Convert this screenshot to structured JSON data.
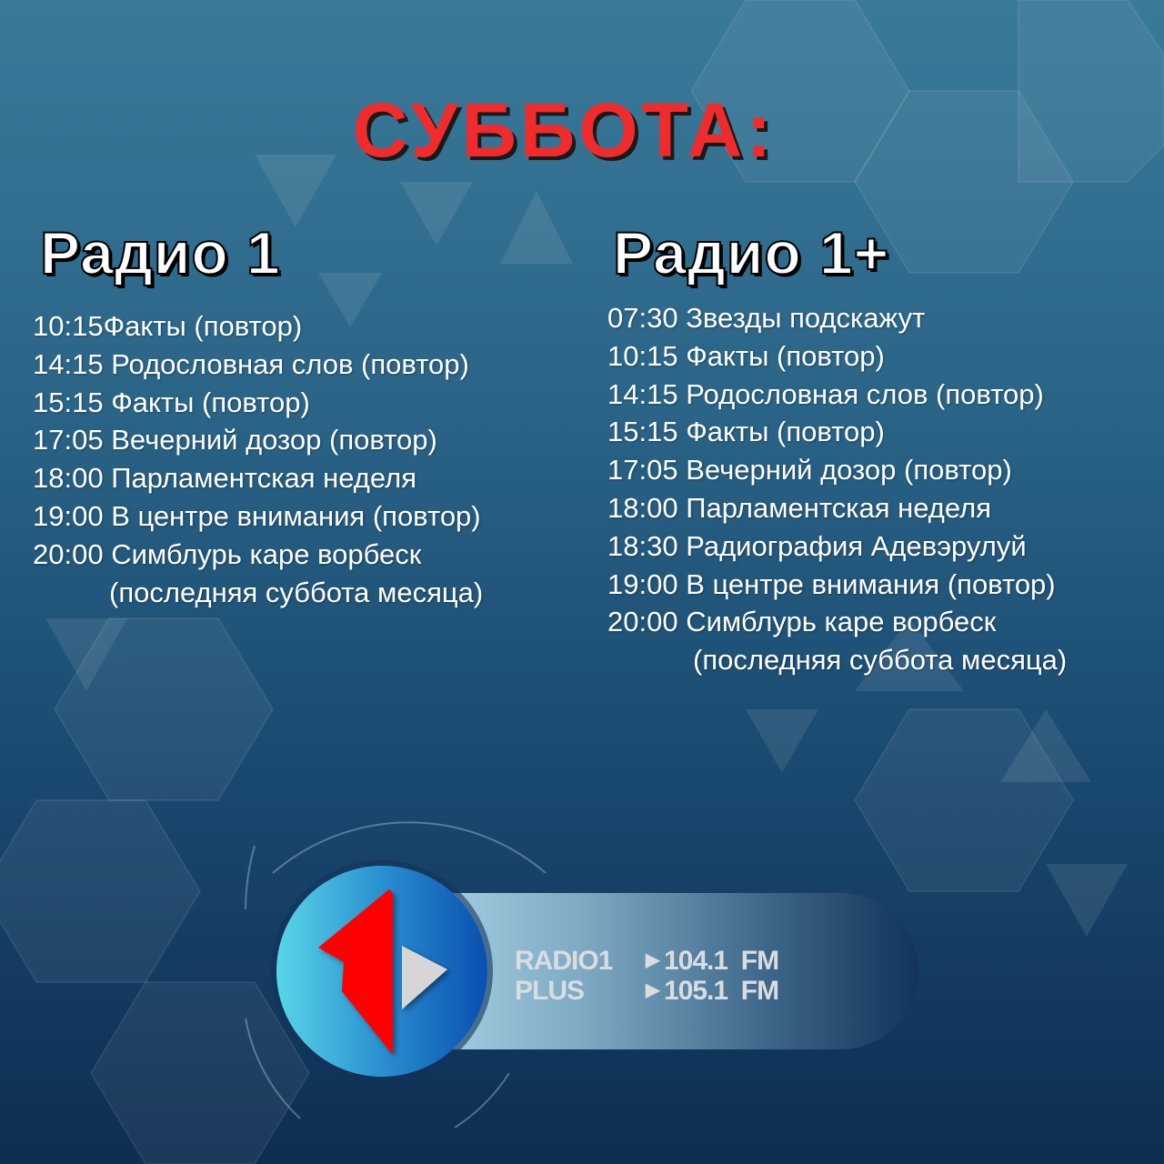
{
  "title": "СУББОТА:",
  "colors": {
    "title": "#ef2b2b",
    "text": "#ffffff",
    "logo_red": "#ff0000"
  },
  "radio1": {
    "heading": "Радио 1",
    "items": [
      "10:15Факты (повтор)",
      "14:15 Родословная слов (повтор)",
      "15:15 Факты (повтор)",
      "17:05 Вечерний дозор (повтор)",
      "18:00 Парламентская неделя",
      "19:00 В центре внимания (повтор)",
      "20:00 Симблурь каре ворбеск"
    ],
    "note": "(последняя суббота месяца)"
  },
  "radio1plus": {
    "heading": "Радио 1+",
    "items": [
      "07:30 Звезды подскажут",
      "10:15 Факты (повтор)",
      "14:15 Родословная слов (повтор)",
      "15:15 Факты (повтор)",
      "17:05 Вечерний дозор (повтор)",
      "18:00 Парламентская неделя",
      "18:30 Радиография Адевэрулуй",
      "19:00 В центре внимания (повтор)",
      "20:00 Симблурь каре ворбеск"
    ],
    "note": "(последняя суббота месяца)"
  },
  "logo": {
    "line1_name": "RADIO1",
    "line1_freq": "104.1  FM",
    "line2_name": "PLUS",
    "line2_freq": "105.1  FM"
  }
}
